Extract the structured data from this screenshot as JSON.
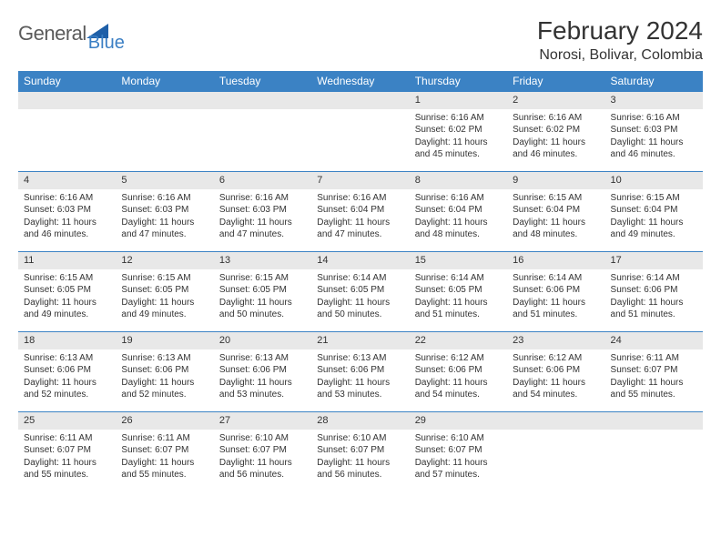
{
  "logo": {
    "main": "General",
    "sub": "Blue"
  },
  "title": "February 2024",
  "subtitle": "Norosi, Bolivar, Colombia",
  "colors": {
    "header_bg": "#3b82c4",
    "header_text": "#ffffff",
    "daynum_bg": "#e8e8e8",
    "text": "#333333",
    "logo_main": "#5b5b5b",
    "logo_sub": "#3b7fc4"
  },
  "day_headers": [
    "Sunday",
    "Monday",
    "Tuesday",
    "Wednesday",
    "Thursday",
    "Friday",
    "Saturday"
  ],
  "weeks": [
    [
      null,
      null,
      null,
      null,
      {
        "n": "1",
        "sr": "6:16 AM",
        "ss": "6:02 PM",
        "dm": "45"
      },
      {
        "n": "2",
        "sr": "6:16 AM",
        "ss": "6:02 PM",
        "dm": "46"
      },
      {
        "n": "3",
        "sr": "6:16 AM",
        "ss": "6:03 PM",
        "dm": "46"
      }
    ],
    [
      {
        "n": "4",
        "sr": "6:16 AM",
        "ss": "6:03 PM",
        "dm": "46"
      },
      {
        "n": "5",
        "sr": "6:16 AM",
        "ss": "6:03 PM",
        "dm": "47"
      },
      {
        "n": "6",
        "sr": "6:16 AM",
        "ss": "6:03 PM",
        "dm": "47"
      },
      {
        "n": "7",
        "sr": "6:16 AM",
        "ss": "6:04 PM",
        "dm": "47"
      },
      {
        "n": "8",
        "sr": "6:16 AM",
        "ss": "6:04 PM",
        "dm": "48"
      },
      {
        "n": "9",
        "sr": "6:15 AM",
        "ss": "6:04 PM",
        "dm": "48"
      },
      {
        "n": "10",
        "sr": "6:15 AM",
        "ss": "6:04 PM",
        "dm": "49"
      }
    ],
    [
      {
        "n": "11",
        "sr": "6:15 AM",
        "ss": "6:05 PM",
        "dm": "49"
      },
      {
        "n": "12",
        "sr": "6:15 AM",
        "ss": "6:05 PM",
        "dm": "49"
      },
      {
        "n": "13",
        "sr": "6:15 AM",
        "ss": "6:05 PM",
        "dm": "50"
      },
      {
        "n": "14",
        "sr": "6:14 AM",
        "ss": "6:05 PM",
        "dm": "50"
      },
      {
        "n": "15",
        "sr": "6:14 AM",
        "ss": "6:05 PM",
        "dm": "51"
      },
      {
        "n": "16",
        "sr": "6:14 AM",
        "ss": "6:06 PM",
        "dm": "51"
      },
      {
        "n": "17",
        "sr": "6:14 AM",
        "ss": "6:06 PM",
        "dm": "51"
      }
    ],
    [
      {
        "n": "18",
        "sr": "6:13 AM",
        "ss": "6:06 PM",
        "dm": "52"
      },
      {
        "n": "19",
        "sr": "6:13 AM",
        "ss": "6:06 PM",
        "dm": "52"
      },
      {
        "n": "20",
        "sr": "6:13 AM",
        "ss": "6:06 PM",
        "dm": "53"
      },
      {
        "n": "21",
        "sr": "6:13 AM",
        "ss": "6:06 PM",
        "dm": "53"
      },
      {
        "n": "22",
        "sr": "6:12 AM",
        "ss": "6:06 PM",
        "dm": "54"
      },
      {
        "n": "23",
        "sr": "6:12 AM",
        "ss": "6:06 PM",
        "dm": "54"
      },
      {
        "n": "24",
        "sr": "6:11 AM",
        "ss": "6:07 PM",
        "dm": "55"
      }
    ],
    [
      {
        "n": "25",
        "sr": "6:11 AM",
        "ss": "6:07 PM",
        "dm": "55"
      },
      {
        "n": "26",
        "sr": "6:11 AM",
        "ss": "6:07 PM",
        "dm": "55"
      },
      {
        "n": "27",
        "sr": "6:10 AM",
        "ss": "6:07 PM",
        "dm": "56"
      },
      {
        "n": "28",
        "sr": "6:10 AM",
        "ss": "6:07 PM",
        "dm": "56"
      },
      {
        "n": "29",
        "sr": "6:10 AM",
        "ss": "6:07 PM",
        "dm": "57"
      },
      null,
      null
    ]
  ],
  "labels": {
    "sunrise": "Sunrise:",
    "sunset": "Sunset:",
    "daylight_prefix": "Daylight: 11 hours and",
    "daylight_suffix": "minutes."
  }
}
